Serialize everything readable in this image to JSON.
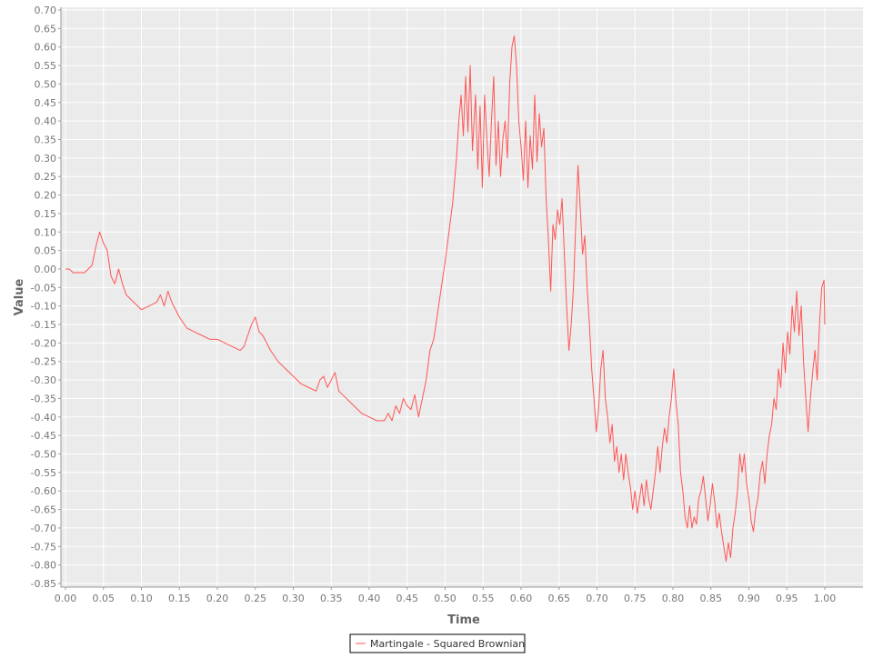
{
  "chart_data": {
    "type": "line",
    "xlabel": "Time",
    "ylabel": "Value",
    "xlim": [
      0.0,
      1.0
    ],
    "ylim": [
      -0.85,
      0.7
    ],
    "x_ticks": [
      "0.00",
      "0.05",
      "0.10",
      "0.15",
      "0.20",
      "0.25",
      "0.30",
      "0.35",
      "0.40",
      "0.45",
      "0.50",
      "0.55",
      "0.60",
      "0.65",
      "0.70",
      "0.75",
      "0.80",
      "0.85",
      "0.90",
      "0.95",
      "1.00"
    ],
    "y_ticks": [
      "0.70",
      "0.65",
      "0.60",
      "0.55",
      "0.50",
      "0.45",
      "0.40",
      "0.35",
      "0.30",
      "0.25",
      "0.20",
      "0.15",
      "0.10",
      "0.05",
      "0.00",
      "-0.05",
      "-0.10",
      "-0.15",
      "-0.20",
      "-0.25",
      "-0.30",
      "-0.35",
      "-0.40",
      "-0.45",
      "-0.50",
      "-0.55",
      "-0.60",
      "-0.65",
      "-0.70",
      "-0.75",
      "-0.80",
      "-0.85"
    ],
    "grid": true,
    "legend_position": "bottom-center",
    "series": [
      {
        "name": "Martingale - Squared Brownian",
        "color": "#ff5555",
        "points": [
          [
            0.0,
            0.0
          ],
          [
            0.005,
            0.0
          ],
          [
            0.01,
            -0.01
          ],
          [
            0.015,
            -0.01
          ],
          [
            0.02,
            -0.01
          ],
          [
            0.025,
            -0.01
          ],
          [
            0.03,
            0.0
          ],
          [
            0.035,
            0.01
          ],
          [
            0.04,
            0.06
          ],
          [
            0.045,
            0.1
          ],
          [
            0.05,
            0.07
          ],
          [
            0.055,
            0.05
          ],
          [
            0.06,
            -0.02
          ],
          [
            0.065,
            -0.04
          ],
          [
            0.07,
            0.0
          ],
          [
            0.075,
            -0.04
          ],
          [
            0.08,
            -0.07
          ],
          [
            0.09,
            -0.09
          ],
          [
            0.1,
            -0.11
          ],
          [
            0.11,
            -0.1
          ],
          [
            0.12,
            -0.09
          ],
          [
            0.125,
            -0.07
          ],
          [
            0.13,
            -0.1
          ],
          [
            0.135,
            -0.06
          ],
          [
            0.14,
            -0.09
          ],
          [
            0.145,
            -0.11
          ],
          [
            0.15,
            -0.13
          ],
          [
            0.16,
            -0.16
          ],
          [
            0.17,
            -0.17
          ],
          [
            0.18,
            -0.18
          ],
          [
            0.19,
            -0.19
          ],
          [
            0.2,
            -0.19
          ],
          [
            0.21,
            -0.2
          ],
          [
            0.22,
            -0.21
          ],
          [
            0.23,
            -0.22
          ],
          [
            0.235,
            -0.21
          ],
          [
            0.24,
            -0.18
          ],
          [
            0.245,
            -0.15
          ],
          [
            0.25,
            -0.13
          ],
          [
            0.255,
            -0.17
          ],
          [
            0.26,
            -0.18
          ],
          [
            0.27,
            -0.22
          ],
          [
            0.28,
            -0.25
          ],
          [
            0.29,
            -0.27
          ],
          [
            0.3,
            -0.29
          ],
          [
            0.31,
            -0.31
          ],
          [
            0.32,
            -0.32
          ],
          [
            0.33,
            -0.33
          ],
          [
            0.335,
            -0.3
          ],
          [
            0.34,
            -0.29
          ],
          [
            0.345,
            -0.32
          ],
          [
            0.35,
            -0.3
          ],
          [
            0.355,
            -0.28
          ],
          [
            0.36,
            -0.33
          ],
          [
            0.37,
            -0.35
          ],
          [
            0.38,
            -0.37
          ],
          [
            0.39,
            -0.39
          ],
          [
            0.4,
            -0.4
          ],
          [
            0.41,
            -0.41
          ],
          [
            0.42,
            -0.41
          ],
          [
            0.425,
            -0.39
          ],
          [
            0.43,
            -0.41
          ],
          [
            0.435,
            -0.37
          ],
          [
            0.44,
            -0.39
          ],
          [
            0.445,
            -0.35
          ],
          [
            0.45,
            -0.37
          ],
          [
            0.455,
            -0.38
          ],
          [
            0.46,
            -0.34
          ],
          [
            0.465,
            -0.4
          ],
          [
            0.47,
            -0.35
          ],
          [
            0.475,
            -0.3
          ],
          [
            0.48,
            -0.22
          ],
          [
            0.485,
            -0.19
          ],
          [
            0.49,
            -0.12
          ],
          [
            0.495,
            -0.05
          ],
          [
            0.5,
            0.02
          ],
          [
            0.505,
            0.1
          ],
          [
            0.51,
            0.18
          ],
          [
            0.515,
            0.3
          ],
          [
            0.518,
            0.4
          ],
          [
            0.521,
            0.47
          ],
          [
            0.524,
            0.36
          ],
          [
            0.527,
            0.52
          ],
          [
            0.53,
            0.37
          ],
          [
            0.533,
            0.55
          ],
          [
            0.536,
            0.32
          ],
          [
            0.54,
            0.47
          ],
          [
            0.543,
            0.27
          ],
          [
            0.546,
            0.44
          ],
          [
            0.549,
            0.22
          ],
          [
            0.552,
            0.47
          ],
          [
            0.555,
            0.35
          ],
          [
            0.558,
            0.25
          ],
          [
            0.561,
            0.4
          ],
          [
            0.564,
            0.52
          ],
          [
            0.567,
            0.28
          ],
          [
            0.57,
            0.4
          ],
          [
            0.573,
            0.25
          ],
          [
            0.576,
            0.35
          ],
          [
            0.579,
            0.4
          ],
          [
            0.582,
            0.3
          ],
          [
            0.585,
            0.5
          ],
          [
            0.588,
            0.6
          ],
          [
            0.591,
            0.63
          ],
          [
            0.594,
            0.55
          ],
          [
            0.597,
            0.4
          ],
          [
            0.6,
            0.33
          ],
          [
            0.603,
            0.24
          ],
          [
            0.606,
            0.4
          ],
          [
            0.609,
            0.22
          ],
          [
            0.612,
            0.36
          ],
          [
            0.615,
            0.27
          ],
          [
            0.618,
            0.47
          ],
          [
            0.621,
            0.29
          ],
          [
            0.624,
            0.42
          ],
          [
            0.627,
            0.33
          ],
          [
            0.63,
            0.38
          ],
          [
            0.633,
            0.19
          ],
          [
            0.636,
            0.08
          ],
          [
            0.639,
            -0.06
          ],
          [
            0.642,
            0.12
          ],
          [
            0.645,
            0.08
          ],
          [
            0.648,
            0.16
          ],
          [
            0.651,
            0.12
          ],
          [
            0.654,
            0.19
          ],
          [
            0.657,
            0.04
          ],
          [
            0.66,
            -0.1
          ],
          [
            0.663,
            -0.22
          ],
          [
            0.666,
            -0.15
          ],
          [
            0.669,
            -0.05
          ],
          [
            0.672,
            0.12
          ],
          [
            0.675,
            0.28
          ],
          [
            0.678,
            0.16
          ],
          [
            0.681,
            0.04
          ],
          [
            0.684,
            0.09
          ],
          [
            0.687,
            -0.05
          ],
          [
            0.69,
            -0.15
          ],
          [
            0.693,
            -0.27
          ],
          [
            0.696,
            -0.35
          ],
          [
            0.699,
            -0.44
          ],
          [
            0.702,
            -0.38
          ],
          [
            0.705,
            -0.27
          ],
          [
            0.708,
            -0.22
          ],
          [
            0.711,
            -0.35
          ],
          [
            0.714,
            -0.4
          ],
          [
            0.717,
            -0.47
          ],
          [
            0.72,
            -0.42
          ],
          [
            0.723,
            -0.52
          ],
          [
            0.726,
            -0.48
          ],
          [
            0.729,
            -0.55
          ],
          [
            0.732,
            -0.5
          ],
          [
            0.735,
            -0.57
          ],
          [
            0.738,
            -0.5
          ],
          [
            0.741,
            -0.55
          ],
          [
            0.744,
            -0.59
          ],
          [
            0.747,
            -0.65
          ],
          [
            0.75,
            -0.6
          ],
          [
            0.753,
            -0.66
          ],
          [
            0.756,
            -0.62
          ],
          [
            0.759,
            -0.58
          ],
          [
            0.762,
            -0.64
          ],
          [
            0.765,
            -0.57
          ],
          [
            0.768,
            -0.62
          ],
          [
            0.771,
            -0.65
          ],
          [
            0.774,
            -0.6
          ],
          [
            0.777,
            -0.55
          ],
          [
            0.78,
            -0.48
          ],
          [
            0.783,
            -0.55
          ],
          [
            0.786,
            -0.48
          ],
          [
            0.789,
            -0.43
          ],
          [
            0.792,
            -0.47
          ],
          [
            0.795,
            -0.4
          ],
          [
            0.798,
            -0.35
          ],
          [
            0.801,
            -0.27
          ],
          [
            0.804,
            -0.36
          ],
          [
            0.807,
            -0.42
          ],
          [
            0.81,
            -0.55
          ],
          [
            0.813,
            -0.6
          ],
          [
            0.816,
            -0.67
          ],
          [
            0.819,
            -0.7
          ],
          [
            0.822,
            -0.64
          ],
          [
            0.825,
            -0.7
          ],
          [
            0.828,
            -0.67
          ],
          [
            0.831,
            -0.69
          ],
          [
            0.834,
            -0.62
          ],
          [
            0.837,
            -0.6
          ],
          [
            0.84,
            -0.56
          ],
          [
            0.843,
            -0.62
          ],
          [
            0.846,
            -0.68
          ],
          [
            0.849,
            -0.64
          ],
          [
            0.852,
            -0.58
          ],
          [
            0.855,
            -0.63
          ],
          [
            0.858,
            -0.7
          ],
          [
            0.861,
            -0.66
          ],
          [
            0.864,
            -0.71
          ],
          [
            0.867,
            -0.75
          ],
          [
            0.87,
            -0.79
          ],
          [
            0.873,
            -0.74
          ],
          [
            0.876,
            -0.78
          ],
          [
            0.879,
            -0.7
          ],
          [
            0.882,
            -0.66
          ],
          [
            0.885,
            -0.6
          ],
          [
            0.888,
            -0.5
          ],
          [
            0.891,
            -0.55
          ],
          [
            0.894,
            -0.5
          ],
          [
            0.897,
            -0.58
          ],
          [
            0.9,
            -0.62
          ],
          [
            0.903,
            -0.68
          ],
          [
            0.906,
            -0.71
          ],
          [
            0.909,
            -0.65
          ],
          [
            0.912,
            -0.62
          ],
          [
            0.915,
            -0.55
          ],
          [
            0.918,
            -0.52
          ],
          [
            0.921,
            -0.58
          ],
          [
            0.924,
            -0.5
          ],
          [
            0.927,
            -0.45
          ],
          [
            0.93,
            -0.42
          ],
          [
            0.933,
            -0.35
          ],
          [
            0.936,
            -0.38
          ],
          [
            0.939,
            -0.27
          ],
          [
            0.942,
            -0.32
          ],
          [
            0.945,
            -0.2
          ],
          [
            0.948,
            -0.28
          ],
          [
            0.951,
            -0.17
          ],
          [
            0.954,
            -0.23
          ],
          [
            0.957,
            -0.1
          ],
          [
            0.96,
            -0.17
          ],
          [
            0.963,
            -0.06
          ],
          [
            0.966,
            -0.18
          ],
          [
            0.969,
            -0.1
          ],
          [
            0.972,
            -0.25
          ],
          [
            0.975,
            -0.35
          ],
          [
            0.978,
            -0.44
          ],
          [
            0.981,
            -0.35
          ],
          [
            0.984,
            -0.28
          ],
          [
            0.987,
            -0.22
          ],
          [
            0.99,
            -0.3
          ],
          [
            0.993,
            -0.15
          ],
          [
            0.996,
            -0.05
          ],
          [
            0.999,
            -0.03
          ],
          [
            1.0,
            -0.15
          ]
        ]
      }
    ]
  }
}
